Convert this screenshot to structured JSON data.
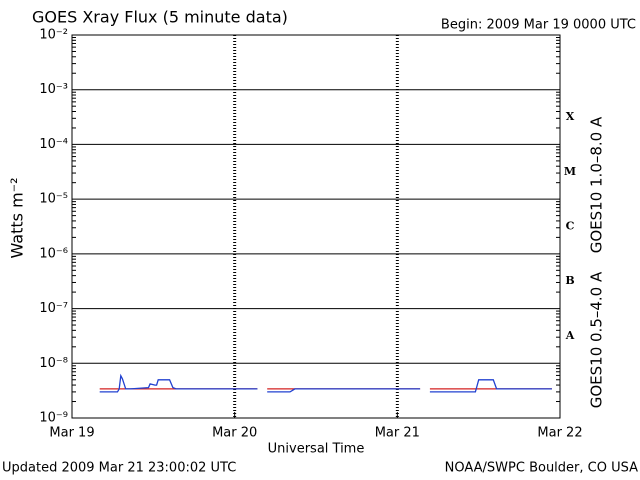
{
  "chart_data": {
    "type": "line",
    "title": "GOES Xray Flux (5 minute data)",
    "subtitle": "Begin:  2009 Mar 19 0000 UTC",
    "x_label": "Universal Time",
    "y_label": "Watts m⁻²",
    "footer_left": "Updated 2009 Mar 21 23:00:02 UTC",
    "footer_right": "NOAA/SWPC Boulder, CO USA",
    "log_y": true,
    "grid": true,
    "xlim": [
      0,
      3
    ],
    "xticks": [
      {
        "value": 0,
        "label": "Mar 19"
      },
      {
        "value": 1,
        "label": "Mar 20"
      },
      {
        "value": 2,
        "label": "Mar 21"
      },
      {
        "value": 3,
        "label": "Mar 22"
      }
    ],
    "ylim": [
      1e-09,
      0.01
    ],
    "yticks": [
      {
        "value": 1e-09,
        "label": "10⁻⁹"
      },
      {
        "value": 1e-08,
        "label": "10⁻⁸"
      },
      {
        "value": 1e-07,
        "label": "10⁻⁷"
      },
      {
        "value": 1e-06,
        "label": "10⁻⁶"
      },
      {
        "value": 1e-05,
        "label": "10⁻⁵"
      },
      {
        "value": 0.0001,
        "label": "10⁻⁴"
      },
      {
        "value": 0.001,
        "label": "10⁻³"
      },
      {
        "value": 0.01,
        "label": "10⁻²"
      }
    ],
    "class_labels": [
      "A",
      "B",
      "C",
      "M",
      "X"
    ],
    "series": [
      {
        "name": "GOES10 1.0–8.0 A",
        "color": "#d42020",
        "x": [
          0.17,
          1.14,
          1.17,
          1.2,
          2.14,
          2.17,
          2.2,
          2.95
        ],
        "values": [
          3.4e-09,
          3.4e-09,
          null,
          3.4e-09,
          3.4e-09,
          null,
          3.4e-09,
          3.4e-09
        ]
      },
      {
        "name": "GOES10 0.5–4.0 A",
        "color": "#2040d0",
        "x": [
          0.17,
          0.28,
          0.29,
          0.3,
          0.31,
          0.33,
          0.36,
          0.47,
          0.48,
          0.51,
          0.52,
          0.53,
          0.54,
          0.6,
          0.62,
          0.64,
          1.14,
          1.17,
          1.2,
          1.34,
          1.37,
          2.14,
          2.17,
          2.2,
          2.48,
          2.5,
          2.59,
          2.61,
          2.95
        ],
        "values": [
          3e-09,
          3e-09,
          3.4e-09,
          5.9e-09,
          5.2e-09,
          3.4e-09,
          3.4e-09,
          3.6e-09,
          4.2e-09,
          4e-09,
          4e-09,
          5e-09,
          5e-09,
          5e-09,
          3.6e-09,
          3.4e-09,
          3.4e-09,
          null,
          3e-09,
          3e-09,
          3.4e-09,
          3.4e-09,
          null,
          3e-09,
          3e-09,
          5e-09,
          5e-09,
          3.4e-09,
          3.4e-09
        ]
      }
    ]
  }
}
